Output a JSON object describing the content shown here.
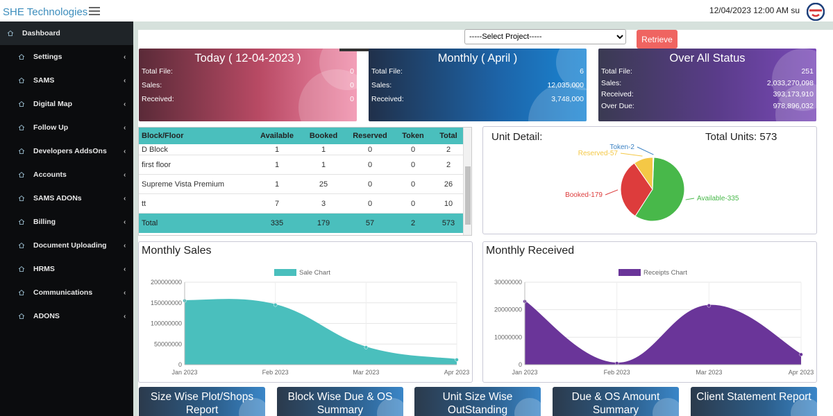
{
  "header": {
    "brand": "SHE Technologies",
    "datetime": "12/04/2023 12:00 AM su"
  },
  "sidebar": {
    "items": [
      {
        "label": "Dashboard",
        "icon": "home-icon",
        "chevron": false
      },
      {
        "label": "Settings",
        "icon": "home-icon",
        "chevron": true
      },
      {
        "label": "SAMS",
        "icon": "home-icon",
        "chevron": true
      },
      {
        "label": "Digital Map",
        "icon": "home-icon",
        "chevron": true
      },
      {
        "label": "Follow Up",
        "icon": "home-icon",
        "chevron": true
      },
      {
        "label": "Developers AddsOns",
        "icon": "home-icon",
        "chevron": true
      },
      {
        "label": "Accounts",
        "icon": "home-icon",
        "chevron": true
      },
      {
        "label": "SAMS ADONs",
        "icon": "home-icon",
        "chevron": true
      },
      {
        "label": "Billing",
        "icon": "home-icon",
        "chevron": true
      },
      {
        "label": "Document Uploading",
        "icon": "home-icon",
        "chevron": true
      },
      {
        "label": "HRMS",
        "icon": "home-icon",
        "chevron": true
      },
      {
        "label": "Communications",
        "icon": "home-icon",
        "chevron": true
      },
      {
        "label": "ADONS",
        "icon": "home-icon",
        "chevron": true
      }
    ]
  },
  "filters": {
    "project_selected": "-----Select Project-----",
    "retrieve_label": "Retrieve"
  },
  "cards": {
    "today": {
      "title": "Today ( 12-04-2023 )",
      "total_file_label": "Total File:",
      "total_file": "0",
      "sales_label": "Sales:",
      "sales": "0",
      "received_label": "Received:",
      "received": "0"
    },
    "monthly": {
      "title": "Monthly ( April )",
      "total_file_label": "Total File:",
      "total_file": "6",
      "sales_label": "Sales:",
      "sales": "12,035,000",
      "received_label": "Received:",
      "received": "3,748,000"
    },
    "overall": {
      "title": "Over All Status",
      "total_file_label": "Total File:",
      "total_file": "251",
      "sales_label": "Sales:",
      "sales": "2,033,270,098",
      "received_label": "Received:",
      "received": "393,173,910",
      "overdue_label": "Over Due:",
      "overdue": "978,896,032"
    }
  },
  "table": {
    "headers": [
      "Block/Floor",
      "Available",
      "Booked",
      "Reserved",
      "Token",
      "Total"
    ],
    "rows": [
      [
        "D Block",
        "1",
        "1",
        "0",
        "0",
        "2"
      ],
      [
        "first floor",
        "1",
        "1",
        "0",
        "0",
        "2"
      ],
      [
        "Supreme Vista Premium",
        "1",
        "25",
        "0",
        "0",
        "26"
      ],
      [
        "tt",
        "7",
        "3",
        "0",
        "0",
        "10"
      ]
    ],
    "total": [
      "Total",
      "335",
      "179",
      "57",
      "2",
      "573"
    ]
  },
  "unit_detail": {
    "title": "Unit Detail:",
    "total_label": "Total Units: 573"
  },
  "chart_data": [
    {
      "type": "pie",
      "slices": [
        {
          "label": "Available-335",
          "value": 335,
          "color": "#48b84a"
        },
        {
          "label": "Booked-179",
          "value": 179,
          "color": "#dd3c3c"
        },
        {
          "label": "Reserved-57",
          "value": 57,
          "color": "#f4c846"
        },
        {
          "label": "Token-2",
          "value": 2,
          "color": "#3b82c4"
        }
      ]
    },
    {
      "type": "area",
      "title": "Monthly Sales",
      "categories": [
        "Jan 2023",
        "Feb 2023",
        "Mar 2023",
        "Apr 2023"
      ],
      "series": [
        {
          "name": "Sale Chart",
          "values": [
            155000000,
            145000000,
            42000000,
            12000000
          ],
          "color": "#4abfbd"
        }
      ],
      "yticks": [
        "0",
        "50000000",
        "100000000",
        "150000000",
        "200000000"
      ],
      "ylim": [
        0,
        200000000
      ],
      "legend": "top"
    },
    {
      "type": "area",
      "title": "Monthly Received",
      "categories": [
        "Jan 2023",
        "Feb 2023",
        "Mar 2023",
        "Apr 2023"
      ],
      "series": [
        {
          "name": "Receipts Chart",
          "values": [
            23000000,
            500000,
            21500000,
            3700000
          ],
          "color": "#6a3599"
        }
      ],
      "yticks": [
        "0",
        "10000000",
        "20000000",
        "30000000"
      ],
      "ylim": [
        0,
        30000000
      ],
      "legend": "top"
    }
  ],
  "reports": [
    {
      "line1": "Size Wise Plot/Shops",
      "line2": "Report"
    },
    {
      "line1": "Block Wise Due & OS",
      "line2": "Summary"
    },
    {
      "line1": "Unit Size Wise",
      "line2": "OutStanding"
    },
    {
      "line1": "Due & OS Amount",
      "line2": "Summary"
    },
    {
      "line1": "Client Statement Report",
      "line2": ""
    }
  ]
}
